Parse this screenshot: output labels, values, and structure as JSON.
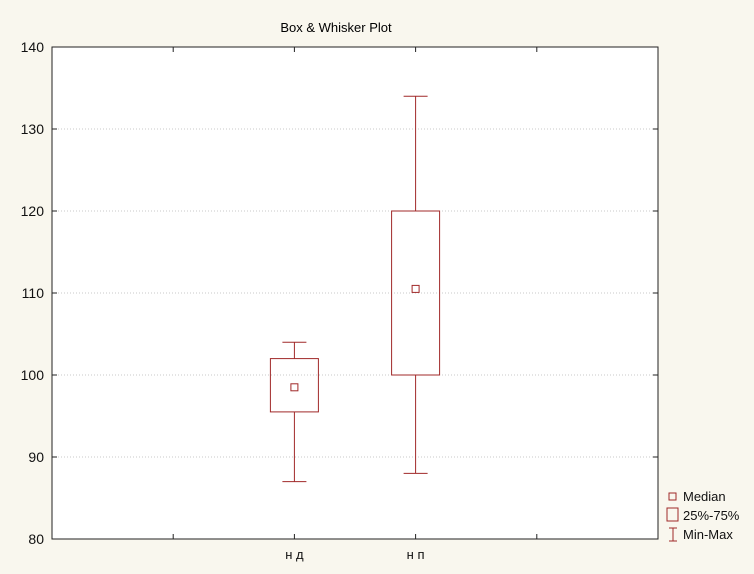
{
  "colors": {
    "background": "#f9f7ee",
    "plot_background": "#ffffff",
    "series": "#a02828",
    "axis": "#222222",
    "grid": "#c8c8c8",
    "text": "#111111"
  },
  "chart_data": {
    "type": "box",
    "title": "Box & Whisker Plot",
    "xlabel": "",
    "ylabel": "",
    "ylim": [
      80,
      140
    ],
    "yticks": [
      80,
      90,
      100,
      110,
      120,
      130,
      140
    ],
    "ytick_labels": [
      "80",
      "90",
      "100",
      "110",
      "120",
      "130",
      "140"
    ],
    "grid": true,
    "legend_position": "bottom-right, outside plot",
    "categories": [
      "н д",
      "н п"
    ],
    "boxes": [
      {
        "category": "н д",
        "min": 87,
        "q1": 95.5,
        "median": 98.5,
        "q3": 102,
        "max": 104
      },
      {
        "category": "н п",
        "min": 88,
        "q1": 100,
        "median": 110.5,
        "q3": 120,
        "max": 134
      }
    ],
    "legend": [
      {
        "label": "Median",
        "icon": "small-square"
      },
      {
        "label": "25%-75%",
        "icon": "box-rectangle"
      },
      {
        "label": "Min-Max",
        "icon": "whisker-range"
      }
    ]
  }
}
